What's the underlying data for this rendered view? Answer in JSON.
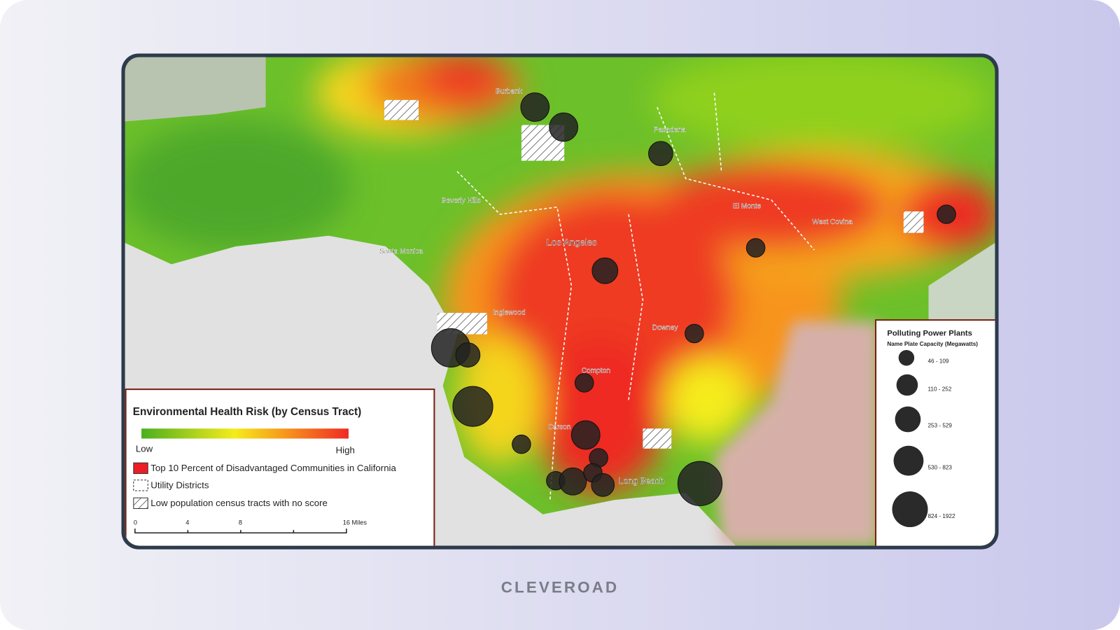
{
  "map": {
    "places": [
      "Burbank",
      "Pasadena",
      "Beverly Hills",
      "El Monte",
      "West Covina",
      "Santa Monica",
      "Los Angeles",
      "Inglewood",
      "Downey",
      "Compton",
      "Carson",
      "Long Beach"
    ],
    "legend": {
      "title": "Environmental Health Risk (by Census Tract)",
      "low": "Low",
      "high": "High",
      "items": [
        "Top 10 Percent of Disadvantaged Communities in California",
        "Utility Districts",
        "Low population census tracts with no score"
      ],
      "scale": [
        "0",
        "4",
        "8",
        "16 Miles"
      ]
    },
    "plants_legend": {
      "title": "Polluting Power Plants",
      "subtitle": "Name Plate Capacity (Megawatts)",
      "classes": [
        "46 - 109",
        "110 - 252",
        "253 - 529",
        "530 - 823",
        "824 - 1922"
      ]
    }
  },
  "brand": "CLEVEROAD"
}
